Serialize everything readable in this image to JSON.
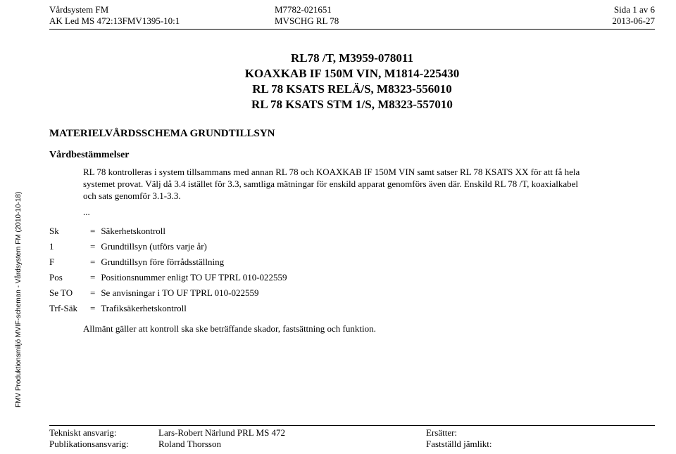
{
  "header": {
    "left": {
      "l1": "Vårdsystem FM",
      "l2": "AK Led MS 472:13FMV1395-10:1"
    },
    "center": {
      "l1": "M7782-021651",
      "l2": "MVSCHG RL 78"
    },
    "right": {
      "l1": "Sida 1 av 6",
      "l2": "2013-06-27"
    }
  },
  "title": {
    "l1": "RL78 /T, M3959-078011",
    "l2": "KOAXKAB IF 150M VIN, M1814-225430",
    "l3": "RL 78 KSATS RELÄ/S, M8323-556010",
    "l4": "RL 78 KSATS STM 1/S, M8323-557010"
  },
  "section_heading": "MATERIELVÅRDSSCHEMA GRUNDTILLSYN",
  "subheading": "Vårdbestämmelser",
  "body_text": "RL 78 kontrolleras i system tillsammans med annan RL 78 och KOAXKAB IF 150M VIN samt satser RL 78 KSATS XX för att få hela systemet provat. Välj då 3.4 istället för 3.3, samtliga mätningar för enskild apparat genomförs även där. Enskild RL 78 /T, koaxialkabel och sats genomför 3.1-3.3.",
  "ellipsis": "...",
  "defs": [
    {
      "k": "Sk",
      "v": "Säkerhetskontroll"
    },
    {
      "k": "1",
      "v": "Grundtillsyn (utförs varje år)"
    },
    {
      "k": "F",
      "v": "Grundtillsyn före förrådsställning"
    },
    {
      "k": "Pos",
      "v": "Positionsnummer enligt TO UF TPRL 010-022559"
    },
    {
      "k": "Se TO",
      "v": "Se anvisningar i TO UF TPRL 010-022559"
    },
    {
      "k": "Trf-Säk",
      "v": "Trafiksäkerhetskontroll"
    }
  ],
  "eq": "=",
  "closing": "Allmänt gäller att kontroll ska ske beträffande skador, fastsättning och funktion.",
  "side_text": "FMV Produktionsmiljö MVIF-scheman - Vårdsystem FM (2010-10-18)",
  "footer": {
    "r1": {
      "label": "Tekniskt ansvarig:",
      "name": "Lars-Robert Närlund PRL MS 472",
      "right_label": "Ersätter:"
    },
    "r2": {
      "label": "Publikationsansvarig:",
      "name": "Roland Thorsson",
      "right_label": "Fastställd jämlikt:"
    }
  }
}
